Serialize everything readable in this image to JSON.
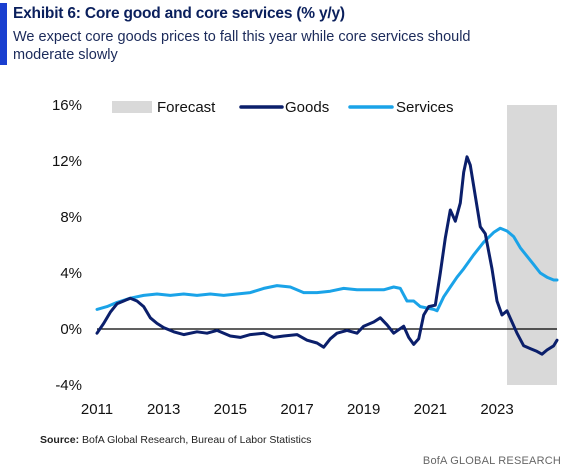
{
  "header": {
    "title": "Exhibit 6: Core good and core services (% y/y)",
    "subtitle": "We expect core goods prices to fall this year while core services should moderate slowly"
  },
  "footer": {
    "source_label": "Source:",
    "source_text": "BofA Global Research, Bureau of Labor Statistics",
    "brand": "BofA GLOBAL RESEARCH"
  },
  "colors": {
    "goods": "#0b1f6b",
    "services": "#1aa3e8",
    "forecast": "#d9d9d9",
    "accent": "#1a3fd0"
  },
  "chart_data": {
    "type": "line",
    "title": "Exhibit 6: Core good and core services (% y/y)",
    "xlabel": "",
    "ylabel": "",
    "xlim": [
      2011.0,
      2024.8
    ],
    "ylim": [
      -4,
      16
    ],
    "y_ticks": [
      "16%",
      "12%",
      "8%",
      "4%",
      "0%",
      "-4%"
    ],
    "y_tick_values": [
      16,
      12,
      8,
      4,
      0,
      -4
    ],
    "x_ticks": [
      "2011",
      "2013",
      "2015",
      "2017",
      "2019",
      "2021",
      "2023"
    ],
    "x_tick_values": [
      2011,
      2013,
      2015,
      2017,
      2019,
      2021,
      2023
    ],
    "legend": {
      "placement": "top",
      "entries": [
        "Forecast",
        "Goods",
        "Services"
      ]
    },
    "forecast_range": [
      2023.3,
      2024.8
    ],
    "series": [
      {
        "name": "Goods",
        "points": [
          [
            2011.0,
            -0.3
          ],
          [
            2011.2,
            0.4
          ],
          [
            2011.4,
            1.2
          ],
          [
            2011.6,
            1.8
          ],
          [
            2011.8,
            2.0
          ],
          [
            2012.0,
            2.2
          ],
          [
            2012.2,
            2.0
          ],
          [
            2012.4,
            1.6
          ],
          [
            2012.6,
            0.8
          ],
          [
            2012.8,
            0.4
          ],
          [
            2013.0,
            0.1
          ],
          [
            2013.3,
            -0.2
          ],
          [
            2013.6,
            -0.4
          ],
          [
            2014.0,
            -0.2
          ],
          [
            2014.3,
            -0.3
          ],
          [
            2014.6,
            -0.1
          ],
          [
            2015.0,
            -0.5
          ],
          [
            2015.3,
            -0.6
          ],
          [
            2015.6,
            -0.4
          ],
          [
            2016.0,
            -0.3
          ],
          [
            2016.3,
            -0.6
          ],
          [
            2016.6,
            -0.5
          ],
          [
            2017.0,
            -0.4
          ],
          [
            2017.3,
            -0.8
          ],
          [
            2017.6,
            -1.0
          ],
          [
            2017.8,
            -1.3
          ],
          [
            2018.0,
            -0.7
          ],
          [
            2018.2,
            -0.3
          ],
          [
            2018.5,
            -0.1
          ],
          [
            2018.8,
            -0.3
          ],
          [
            2019.0,
            0.2
          ],
          [
            2019.3,
            0.5
          ],
          [
            2019.5,
            0.8
          ],
          [
            2019.7,
            0.3
          ],
          [
            2019.9,
            -0.3
          ],
          [
            2020.2,
            0.2
          ],
          [
            2020.35,
            -0.6
          ],
          [
            2020.5,
            -1.1
          ],
          [
            2020.65,
            -0.7
          ],
          [
            2020.8,
            1.0
          ],
          [
            2020.95,
            1.6
          ],
          [
            2021.15,
            1.7
          ],
          [
            2021.3,
            4.0
          ],
          [
            2021.45,
            6.5
          ],
          [
            2021.6,
            8.5
          ],
          [
            2021.75,
            7.7
          ],
          [
            2021.9,
            9.0
          ],
          [
            2022.0,
            11.2
          ],
          [
            2022.1,
            12.3
          ],
          [
            2022.2,
            11.7
          ],
          [
            2022.35,
            9.5
          ],
          [
            2022.5,
            7.3
          ],
          [
            2022.65,
            6.8
          ],
          [
            2022.85,
            4.3
          ],
          [
            2023.0,
            2.0
          ],
          [
            2023.15,
            1.0
          ],
          [
            2023.3,
            1.3
          ],
          [
            2023.45,
            0.5
          ],
          [
            2023.6,
            -0.3
          ],
          [
            2023.8,
            -1.2
          ],
          [
            2024.0,
            -1.4
          ],
          [
            2024.2,
            -1.6
          ],
          [
            2024.35,
            -1.8
          ],
          [
            2024.5,
            -1.5
          ],
          [
            2024.7,
            -1.2
          ],
          [
            2024.8,
            -0.8
          ]
        ]
      },
      {
        "name": "Services",
        "points": [
          [
            2011.0,
            1.4
          ],
          [
            2011.3,
            1.6
          ],
          [
            2011.6,
            1.9
          ],
          [
            2012.0,
            2.2
          ],
          [
            2012.4,
            2.4
          ],
          [
            2012.8,
            2.5
          ],
          [
            2013.2,
            2.4
          ],
          [
            2013.6,
            2.5
          ],
          [
            2014.0,
            2.4
          ],
          [
            2014.4,
            2.5
          ],
          [
            2014.8,
            2.4
          ],
          [
            2015.2,
            2.5
          ],
          [
            2015.6,
            2.6
          ],
          [
            2016.0,
            2.9
          ],
          [
            2016.4,
            3.1
          ],
          [
            2016.8,
            3.0
          ],
          [
            2017.2,
            2.6
          ],
          [
            2017.6,
            2.6
          ],
          [
            2018.0,
            2.7
          ],
          [
            2018.4,
            2.9
          ],
          [
            2018.8,
            2.8
          ],
          [
            2019.2,
            2.8
          ],
          [
            2019.6,
            2.8
          ],
          [
            2019.9,
            3.0
          ],
          [
            2020.1,
            2.9
          ],
          [
            2020.3,
            2.0
          ],
          [
            2020.5,
            2.0
          ],
          [
            2020.7,
            1.6
          ],
          [
            2020.9,
            1.5
          ],
          [
            2021.1,
            1.4
          ],
          [
            2021.2,
            1.3
          ],
          [
            2021.4,
            2.3
          ],
          [
            2021.6,
            3.0
          ],
          [
            2021.8,
            3.7
          ],
          [
            2022.0,
            4.3
          ],
          [
            2022.3,
            5.3
          ],
          [
            2022.6,
            6.2
          ],
          [
            2022.9,
            6.9
          ],
          [
            2023.1,
            7.2
          ],
          [
            2023.3,
            7.0
          ],
          [
            2023.5,
            6.6
          ],
          [
            2023.7,
            5.8
          ],
          [
            2023.9,
            5.2
          ],
          [
            2024.1,
            4.6
          ],
          [
            2024.3,
            4.0
          ],
          [
            2024.5,
            3.7
          ],
          [
            2024.7,
            3.5
          ],
          [
            2024.8,
            3.5
          ]
        ]
      }
    ]
  }
}
